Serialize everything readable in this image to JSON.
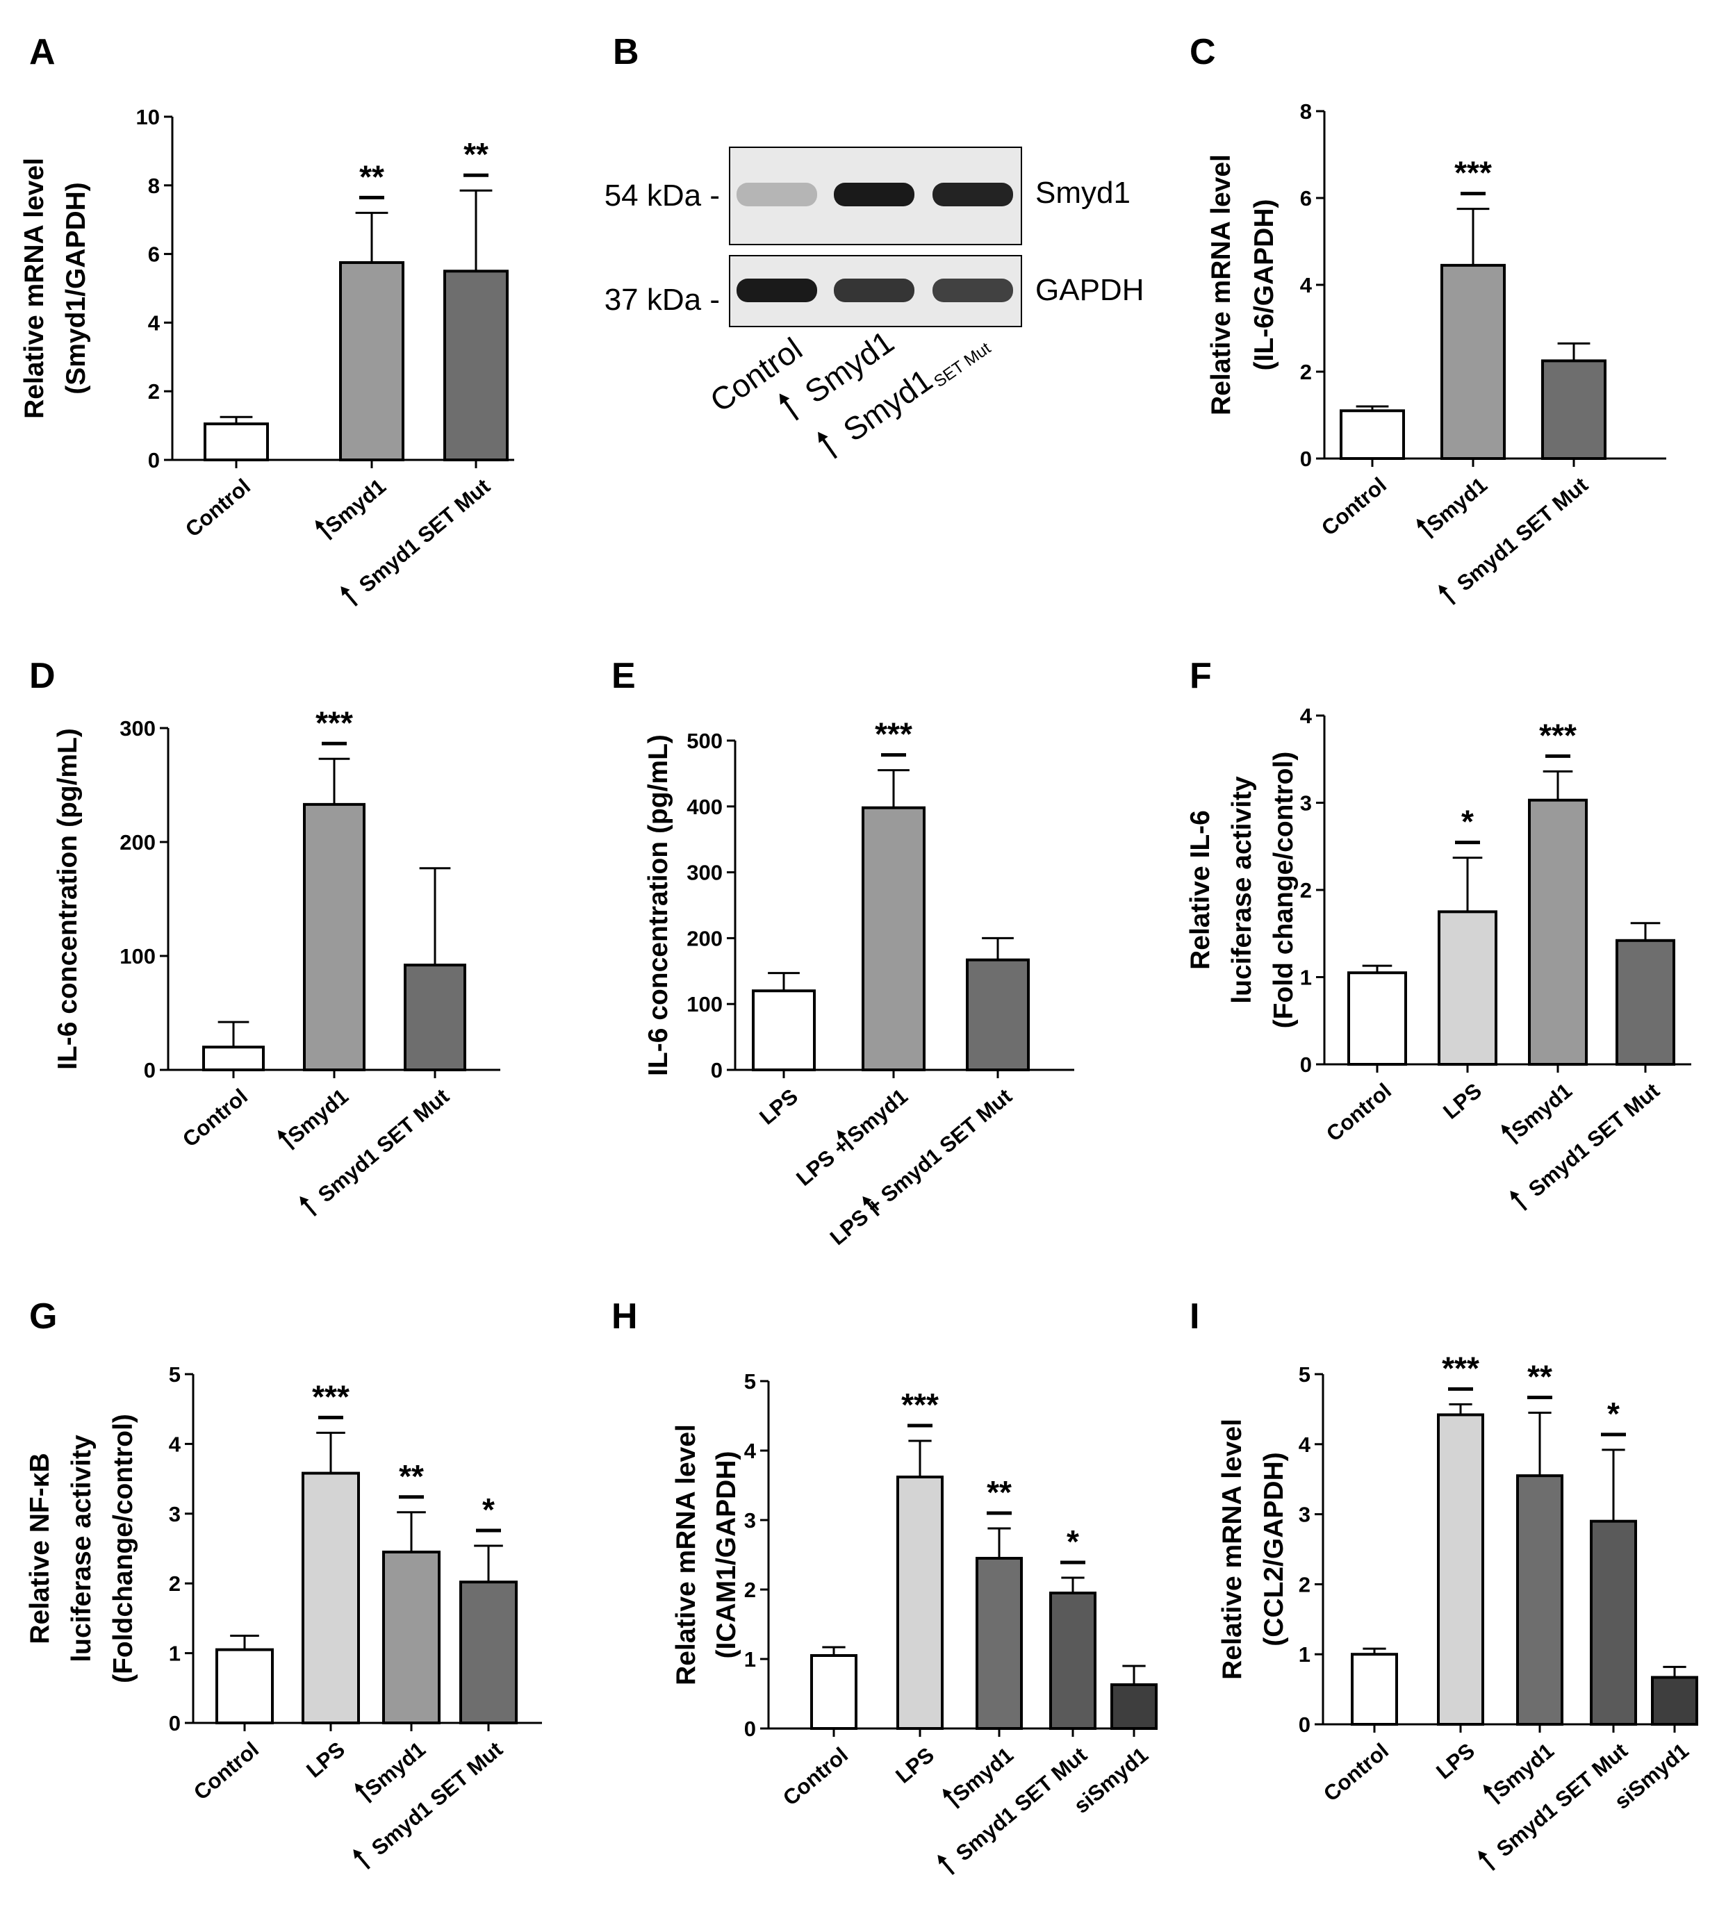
{
  "colors": {
    "white": "#ffffff",
    "light": "#d4d4d4",
    "mid": "#9a9a9a",
    "dark": "#6e6e6e",
    "darker": "#5a5a5a",
    "darkest": "#3e3e3e",
    "blot_bg": "#e9e9e9",
    "band": "#1a1a1a"
  },
  "chart_data": [
    {
      "panel": "A",
      "type": "bar",
      "ylabel_lines": [
        "Relative mRNA level",
        "(Smyd1/GAPDH)"
      ],
      "ylim": [
        0,
        10
      ],
      "yticks": [
        0,
        2,
        4,
        6,
        8,
        10
      ],
      "categories": [
        "Control",
        "Smyd1",
        "Smyd1 SET Mut"
      ],
      "arrows": [
        false,
        true,
        true
      ],
      "values": [
        1.05,
        5.75,
        5.5
      ],
      "errors": [
        0.2,
        1.45,
        2.35
      ],
      "fills": [
        "white",
        "mid",
        "dark"
      ],
      "significance": [
        "",
        "**",
        "**"
      ]
    },
    {
      "panel": "C",
      "type": "bar",
      "ylabel_lines": [
        "Relative mRNA level",
        "(IL-6/GAPDH)"
      ],
      "ylim": [
        0,
        8
      ],
      "yticks": [
        0,
        2,
        4,
        6,
        8
      ],
      "categories": [
        "Control",
        "Smyd1",
        "Smyd1 SET Mut"
      ],
      "arrows": [
        false,
        true,
        true
      ],
      "values": [
        1.1,
        4.45,
        2.25
      ],
      "errors": [
        0.1,
        1.3,
        0.4
      ],
      "fills": [
        "white",
        "mid",
        "dark"
      ],
      "significance": [
        "",
        "***",
        ""
      ]
    },
    {
      "panel": "D",
      "type": "bar",
      "ylabel_lines": [
        "IL-6 concentration (pg/mL)"
      ],
      "ylim": [
        0,
        300
      ],
      "yticks": [
        0,
        100,
        200,
        300
      ],
      "categories": [
        "Control",
        "Smyd1",
        "Smyd1 SET Mut"
      ],
      "arrows": [
        false,
        true,
        true
      ],
      "values": [
        20,
        233,
        92
      ],
      "errors": [
        22,
        40,
        85
      ],
      "fills": [
        "white",
        "mid",
        "dark"
      ],
      "significance": [
        "",
        "***",
        ""
      ]
    },
    {
      "panel": "E",
      "type": "bar",
      "ylabel_lines": [
        "IL-6 concentration (pg/mL)"
      ],
      "ylim": [
        0,
        500
      ],
      "yticks": [
        0,
        100,
        200,
        300,
        400,
        500
      ],
      "categories": [
        "LPS",
        "Smyd1",
        "Smyd1 SET Mut"
      ],
      "prefixes": [
        "",
        "LPS + ",
        "LPS + "
      ],
      "arrows": [
        false,
        true,
        true
      ],
      "values": [
        120,
        398,
        167
      ],
      "errors": [
        27,
        57,
        33
      ],
      "fills": [
        "white",
        "mid",
        "dark"
      ],
      "significance": [
        "",
        "***",
        ""
      ]
    },
    {
      "panel": "F",
      "type": "bar",
      "ylabel_lines": [
        "Relative IL-6",
        "luciferase activity",
        "(Fold change/control)"
      ],
      "ylim": [
        0,
        4
      ],
      "yticks": [
        0,
        1,
        2,
        3,
        4
      ],
      "categories": [
        "Control",
        "LPS",
        "Smyd1",
        "Smyd1 SET Mut"
      ],
      "arrows": [
        false,
        false,
        true,
        true
      ],
      "values": [
        1.05,
        1.75,
        3.03,
        1.42
      ],
      "errors": [
        0.08,
        0.62,
        0.33,
        0.2
      ],
      "fills": [
        "white",
        "light",
        "mid",
        "dark"
      ],
      "significance": [
        "",
        "*",
        "***",
        ""
      ]
    },
    {
      "panel": "G",
      "type": "bar",
      "ylabel_lines": [
        "Relative NF-κB",
        "luciferase activity",
        "(Foldchange/control)"
      ],
      "ylim": [
        0,
        5
      ],
      "yticks": [
        0,
        1,
        2,
        3,
        4,
        5
      ],
      "categories": [
        "Control",
        "LPS",
        "Smyd1",
        "Smyd1 SET Mut"
      ],
      "arrows": [
        false,
        false,
        true,
        true
      ],
      "values": [
        1.05,
        3.58,
        2.45,
        2.02
      ],
      "errors": [
        0.2,
        0.58,
        0.57,
        0.52
      ],
      "fills": [
        "white",
        "light",
        "mid",
        "dark"
      ],
      "significance": [
        "",
        "***",
        "**",
        "*"
      ]
    },
    {
      "panel": "H",
      "type": "bar",
      "ylabel_lines": [
        "Relative mRNA level",
        "(ICAM1/GAPDH)"
      ],
      "ylim": [
        0,
        5
      ],
      "yticks": [
        0,
        1,
        2,
        3,
        4,
        5
      ],
      "categories": [
        "Control",
        "LPS",
        "Smyd1",
        "Smyd1 SET Mut",
        "siSmyd1"
      ],
      "arrows": [
        false,
        false,
        true,
        true,
        false
      ],
      "values": [
        1.05,
        3.62,
        2.45,
        1.95,
        0.63
      ],
      "errors": [
        0.12,
        0.52,
        0.43,
        0.22,
        0.27
      ],
      "fills": [
        "white",
        "light",
        "dark",
        "darker",
        "darkest"
      ],
      "significance": [
        "",
        "***",
        "**",
        "*",
        ""
      ]
    },
    {
      "panel": "I",
      "type": "bar",
      "ylabel_lines": [
        "Relative mRNA level",
        "(CCL2/GAPDH)"
      ],
      "ylim": [
        0,
        5
      ],
      "yticks": [
        0,
        1,
        2,
        3,
        4,
        5
      ],
      "categories": [
        "Control",
        "LPS",
        "Smyd1",
        "Smyd1 SET Mut",
        "siSmyd1"
      ],
      "arrows": [
        false,
        false,
        true,
        true,
        false
      ],
      "values": [
        1.0,
        4.42,
        3.55,
        2.9,
        0.67
      ],
      "errors": [
        0.08,
        0.15,
        0.9,
        1.02,
        0.15
      ],
      "fills": [
        "white",
        "light",
        "dark",
        "darker",
        "darkest"
      ],
      "significance": [
        "",
        "***",
        "**",
        "*",
        ""
      ]
    }
  ],
  "blot": {
    "panel": "B",
    "rows": [
      {
        "marker": "54 kDa -",
        "protein": "Smyd1",
        "intensity": [
          0.15,
          1.0,
          0.95
        ]
      },
      {
        "marker": "37 kDa -",
        "protein": "GAPDH",
        "intensity": [
          1.0,
          0.85,
          0.78
        ]
      }
    ],
    "lanes": [
      "Control",
      "Smyd1",
      "Smyd1"
    ],
    "lane_subscript": "SET Mut",
    "lane_arrows": [
      false,
      true,
      true
    ]
  }
}
